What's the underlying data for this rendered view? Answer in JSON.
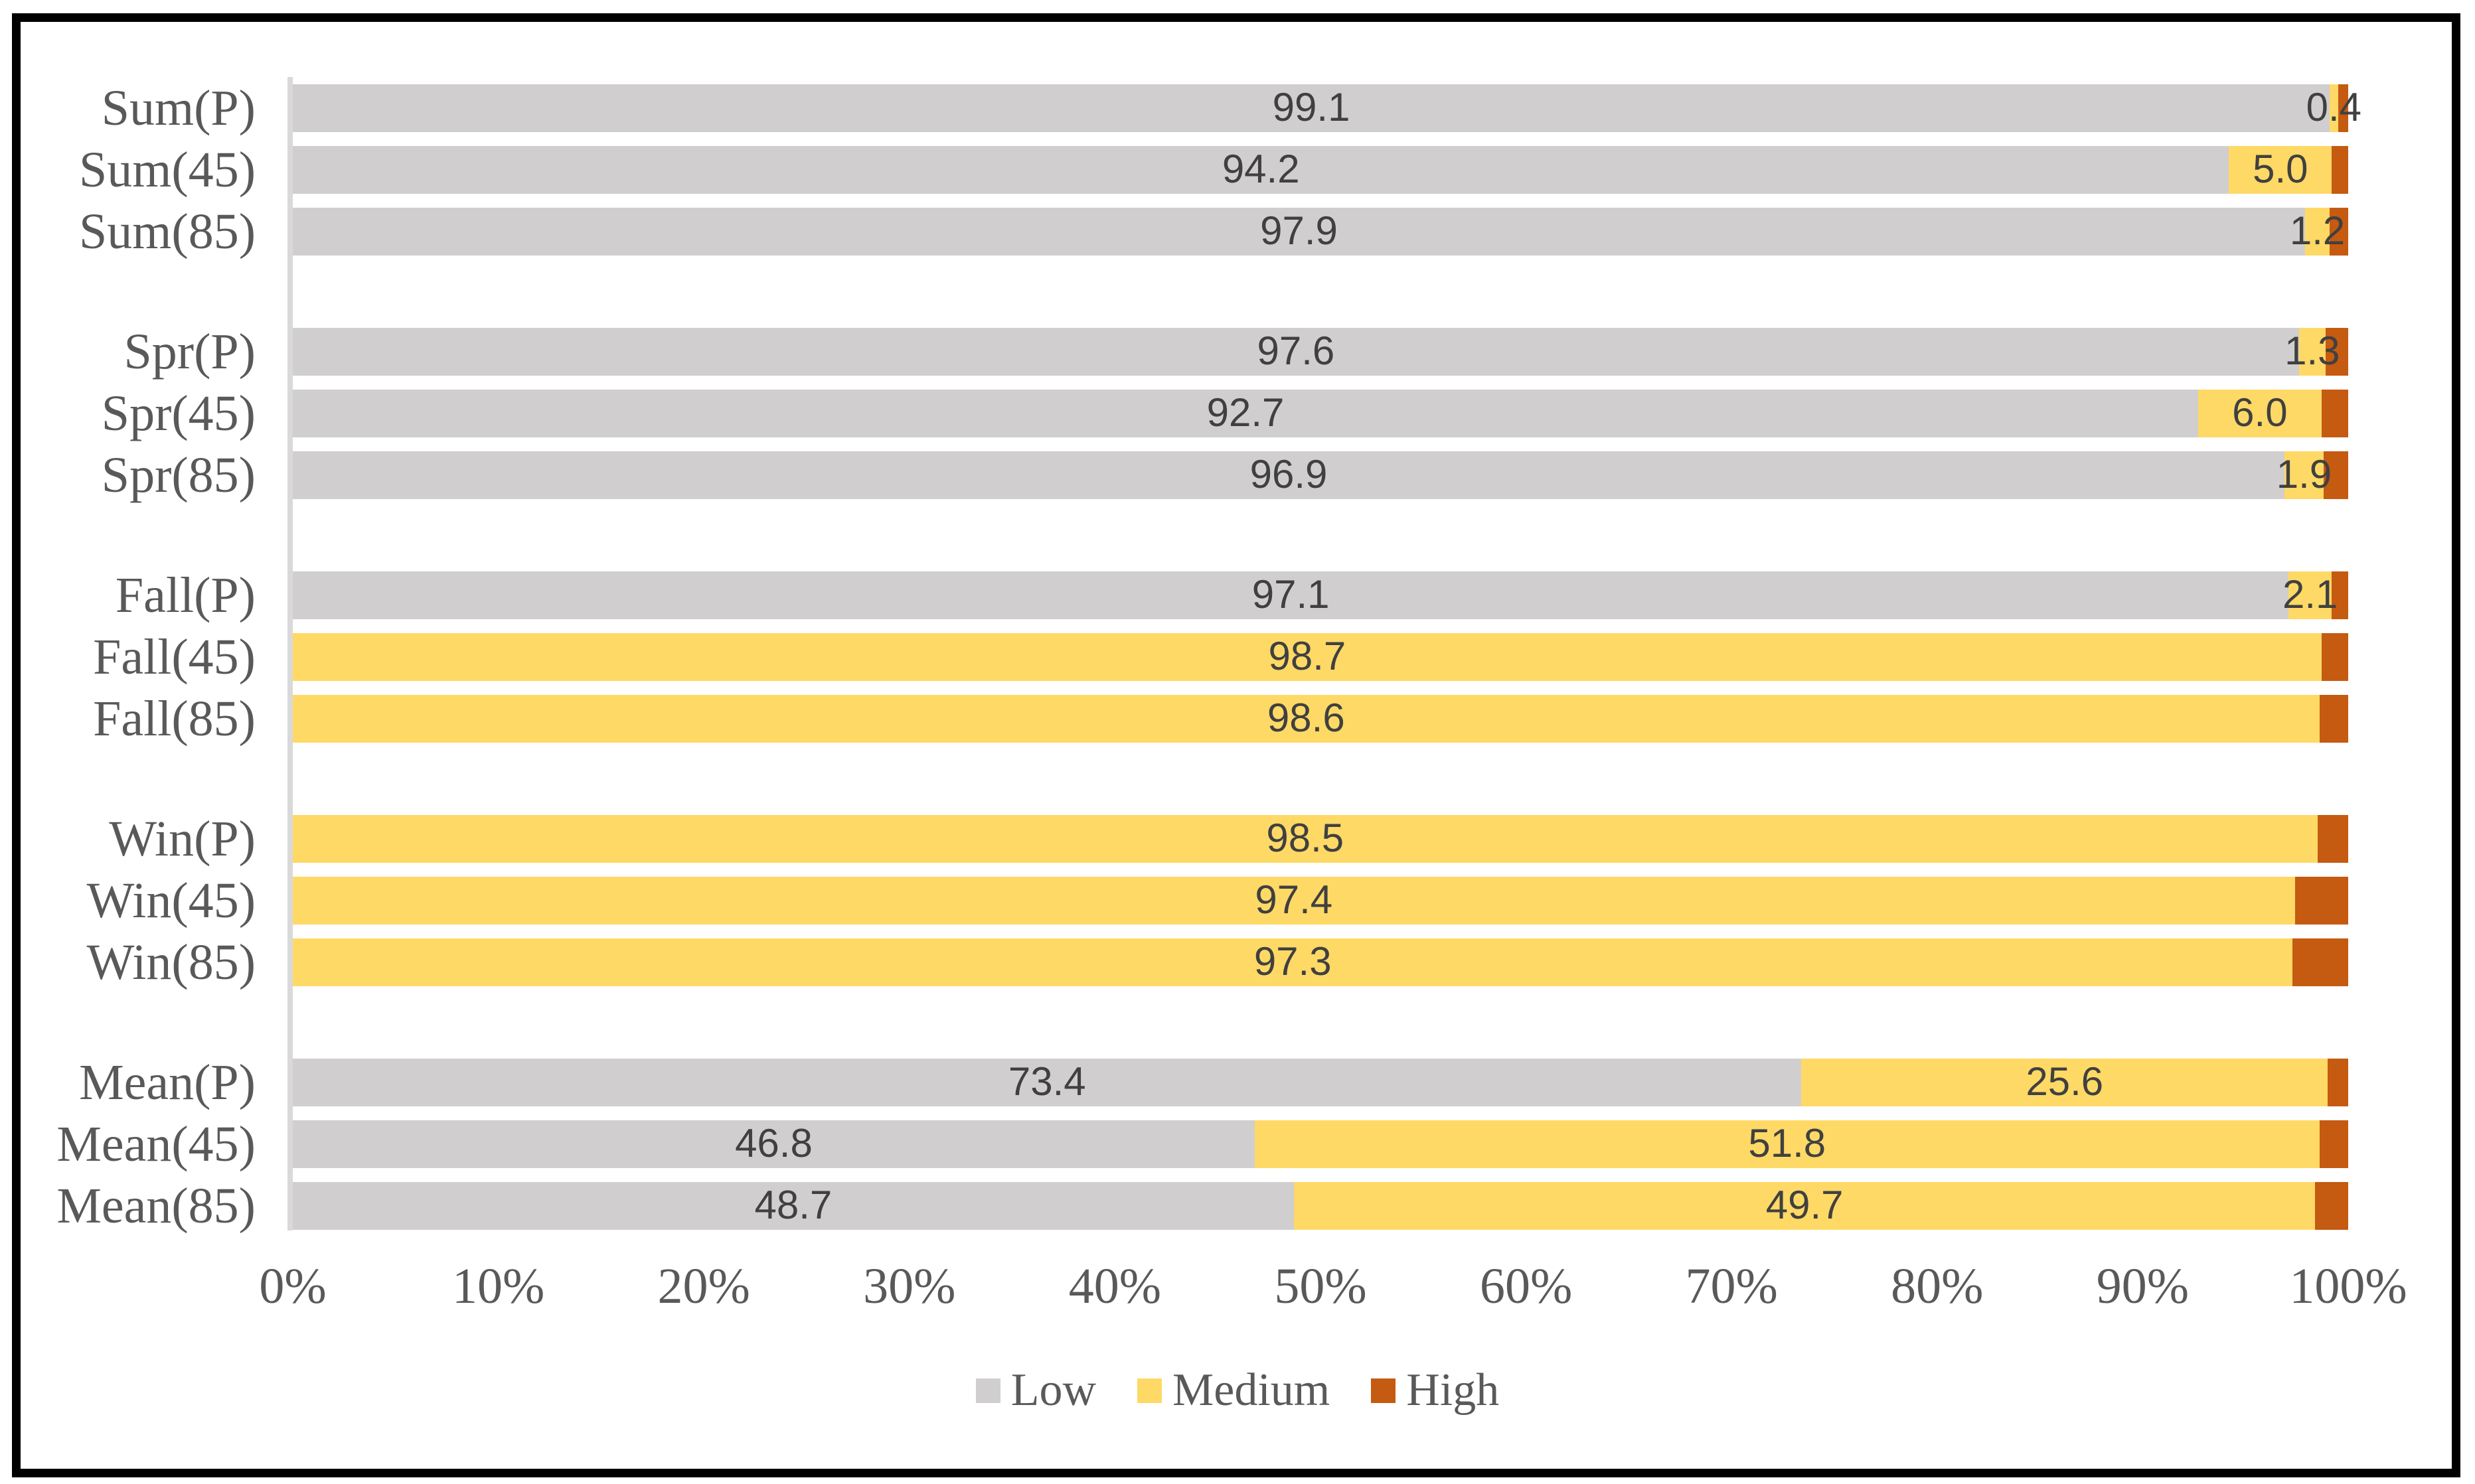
{
  "figure": {
    "background_color": "#FFFFFF",
    "border_color": "#000000",
    "axis_line_color": "#D9D9D9",
    "label_text_color": "#595959",
    "value_text_color": "#404040"
  },
  "chart_data": {
    "type": "bar",
    "orientation": "horizontal",
    "stacked": true,
    "title": "",
    "xlabel": "",
    "ylabel": "",
    "xlim": [
      0,
      100
    ],
    "x_tick_labels": [
      "0%",
      "10%",
      "20%",
      "30%",
      "40%",
      "50%",
      "60%",
      "70%",
      "80%",
      "90%",
      "100%"
    ],
    "grid": false,
    "group_size": 3,
    "categories": [
      "Sum(P)",
      "Sum(45)",
      "Sum(85)",
      "Spr(P)",
      "Spr(45)",
      "Spr(85)",
      "Fall(P)",
      "Fall(45)",
      "Fall(85)",
      "Win(P)",
      "Win(45)",
      "Win(85)",
      "Mean(P)",
      "Mean(45)",
      "Mean(85)"
    ],
    "series": [
      {
        "name": "Low",
        "color": "#D0CECE",
        "values": [
          99.1,
          94.2,
          97.9,
          97.6,
          92.7,
          96.9,
          97.1,
          0,
          0,
          0,
          0,
          0,
          73.4,
          46.8,
          48.7
        ],
        "labels": [
          "99.1",
          "94.2",
          "97.9",
          "97.6",
          "92.7",
          "96.9",
          "97.1",
          "",
          "",
          "",
          "",
          "",
          "73.4",
          "46.8",
          "48.7"
        ]
      },
      {
        "name": "Medium",
        "color": "#FFD966",
        "values": [
          0.4,
          5.0,
          1.2,
          1.3,
          6.0,
          1.9,
          2.1,
          98.7,
          98.6,
          98.5,
          97.4,
          97.3,
          25.6,
          51.8,
          49.7
        ],
        "labels": [
          "0.4",
          "5.0",
          "1.2",
          "1.3",
          "6.0",
          "1.9",
          "2.1",
          "98.7",
          "98.6",
          "98.5",
          "97.4",
          "97.3",
          "25.6",
          "51.8",
          "49.7"
        ]
      },
      {
        "name": "High",
        "color": "#C55A11",
        "values": [
          0.5,
          0.8,
          0.9,
          1.1,
          1.3,
          1.2,
          0.8,
          1.3,
          1.4,
          1.5,
          2.6,
          2.7,
          1.0,
          1.4,
          1.6
        ],
        "labels": [
          "",
          "",
          "",
          "",
          "",
          "",
          "",
          "",
          "",
          "",
          "",
          "",
          "",
          "",
          ""
        ]
      }
    ],
    "legend": [
      {
        "label": "Low",
        "color": "#D0CECE"
      },
      {
        "label": "Medium",
        "color": "#FFD966"
      },
      {
        "label": "High",
        "color": "#C55A11"
      }
    ],
    "legend_position": "bottom"
  }
}
